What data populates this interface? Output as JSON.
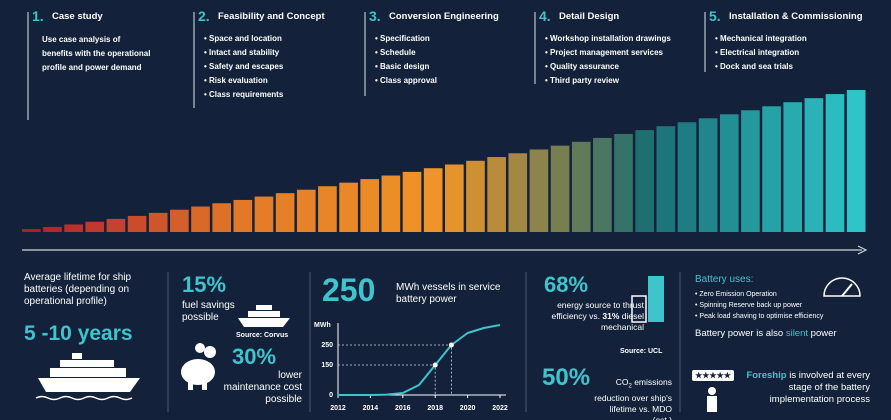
{
  "steps": [
    {
      "number": "1.",
      "title": "Case study",
      "text": "Use case analysis of benefits with the operational profile and power demand"
    },
    {
      "number": "2.",
      "title": "Feasibility and Concept",
      "items": [
        "Space and location",
        "Intact and stability",
        "Safety and escapes",
        "Risk evaluation",
        "Class requirements"
      ]
    },
    {
      "number": "3.",
      "title": "Conversion Engineering",
      "items": [
        "Specification",
        "Schedule",
        "Basic design",
        "Class approval"
      ]
    },
    {
      "number": "4.",
      "title": "Detail Design",
      "items": [
        "Workshop installation drawings",
        "Project management services",
        "Quality assurance",
        "Third party review"
      ]
    },
    {
      "number": "5.",
      "title": "Installation & Commissioning",
      "items": [
        "Mechanical integration",
        "Electrical integration",
        "Dock and sea trials"
      ]
    }
  ],
  "lifetime": {
    "text": "Average lifetime for ship batteries (depending on operational profile)",
    "value": "5 -10 years"
  },
  "savings": {
    "fuel_value": "15%",
    "fuel_text": "fuel savings possible",
    "source": "Source: Corvus",
    "maintenance_value": "30%",
    "maintenance_text": "lower maintenance cost possible"
  },
  "chart_data": {
    "type": "line",
    "headline": "250",
    "title": "MWh vessels in service battery power",
    "ylabel": "MWh",
    "x": [
      2012,
      2014,
      2015,
      2016,
      2017,
      2018,
      2019,
      2020,
      2021,
      2022
    ],
    "values": [
      0,
      0,
      2,
      10,
      50,
      150,
      250,
      310,
      335,
      350
    ],
    "color": "#3fc4cc",
    "xlim": [
      2012,
      2022
    ],
    "xticks": [
      2012,
      2014,
      2016,
      2018,
      2020,
      2022
    ],
    "ylim": [
      0,
      360
    ],
    "yticks": [
      0,
      150,
      250
    ]
  },
  "efficiency": {
    "value": "68%",
    "text": "energy source to thrust efficiency vs.",
    "compare_value": "31%",
    "compare_text": "diesel mechanical",
    "source": "Source: UCL"
  },
  "emissions": {
    "value": "50%",
    "co": "CO",
    "sub": "2",
    "text": "emissions reduction over ship's lifetime vs. MDO (est.)"
  },
  "battery_uses": {
    "title": "Battery uses:",
    "items": [
      "Zero Emission Operation",
      "Spinning Reserve back up power",
      "Peak load shaving to optimise efficiency"
    ],
    "silent_pre": "Battery power is also",
    "silent": "silent",
    "silent_post": "power"
  },
  "foreship": {
    "name": "Foreship",
    "text": "is involved at every stage of the battery implementation process"
  }
}
